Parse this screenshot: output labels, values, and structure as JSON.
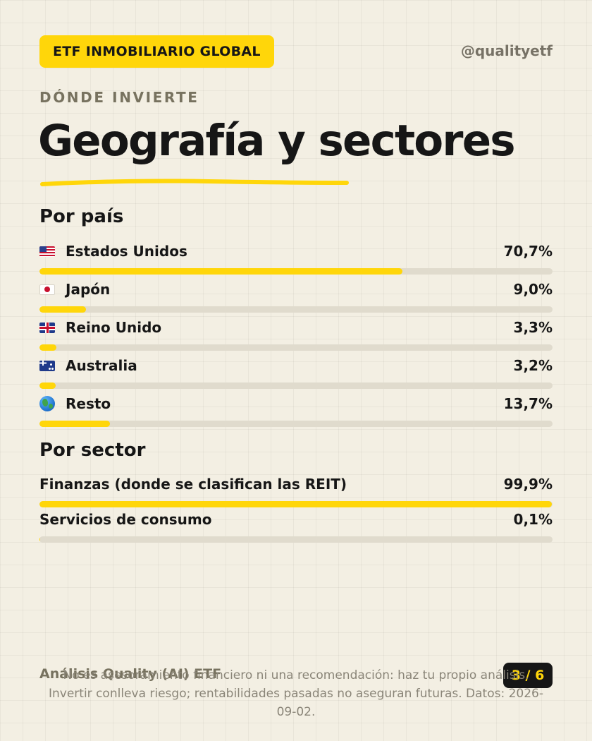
{
  "header": {
    "badge": "ETF INMOBILIARIO GLOBAL",
    "handle": "@qualityetf"
  },
  "eyebrow": "DÓNDE INVIERTE",
  "title": "Geografía y sectores",
  "colors": {
    "accent": "#ffd60a",
    "background": "#f3efe3",
    "track": "#e0dbcd",
    "text": "#161616",
    "muted": "#77725f"
  },
  "countries": {
    "heading": "Por país",
    "items": [
      {
        "icon": "us-flag-icon",
        "label": "Estados Unidos",
        "value": "70,7%",
        "share": 0.707
      },
      {
        "icon": "japan-flag-icon",
        "label": "Japón",
        "value": "9,0%",
        "share": 0.09
      },
      {
        "icon": "uk-flag-icon",
        "label": "Reino Unido",
        "value": "3,3%",
        "share": 0.033
      },
      {
        "icon": "australia-flag-icon",
        "label": "Australia",
        "value": "3,2%",
        "share": 0.032
      },
      {
        "icon": "globe-icon",
        "label": "Resto",
        "value": "13,7%",
        "share": 0.137
      }
    ]
  },
  "sectors": {
    "heading": "Por sector",
    "items": [
      {
        "label": "Finanzas (donde se clasifican las REIT)",
        "value": "99,9%",
        "share": 0.999
      },
      {
        "label": "Servicios de consumo",
        "value": "0,1%",
        "share": 0.001
      }
    ]
  },
  "footer": {
    "brand": "Análisis Quality (AI) ETF",
    "page": "3 / 6",
    "disclaimer": "No es asesoramiento financiero ni una recomendación: haz tu propio análisis. Invertir conlleva riesgo; rentabilidades pasadas no aseguran futuras. Datos: 2026-09-02."
  }
}
